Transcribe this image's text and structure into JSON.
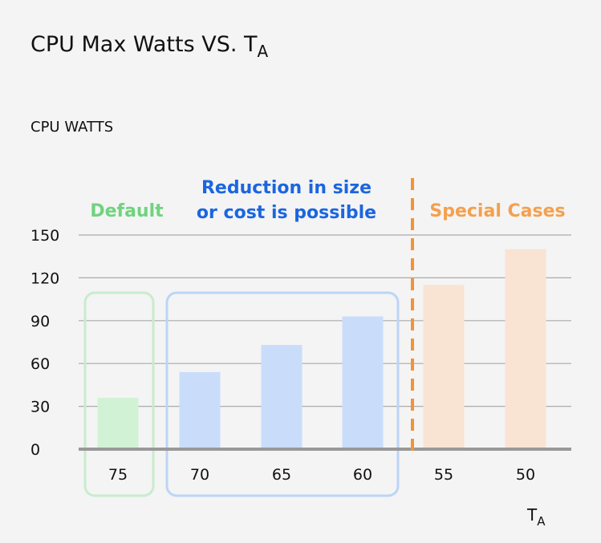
{
  "chart_data": {
    "type": "bar",
    "title": "CPU Max Watts VS. T",
    "title_subscript": "A",
    "ylabel": "CPU WATTS",
    "xlabel": "T",
    "xlabel_subscript": "A",
    "categories": [
      "75",
      "70",
      "65",
      "60",
      "55",
      "50"
    ],
    "values": [
      36,
      54,
      73,
      93,
      115,
      140
    ],
    "ylim": [
      0,
      150
    ],
    "yticks": [
      0,
      30,
      60,
      90,
      120,
      150
    ],
    "grid": true,
    "bar_colors": [
      "#d2f2d6",
      "#c9ddfb",
      "#c9ddfb",
      "#c9ddfb",
      "#f9e3d2",
      "#f9e3d2"
    ],
    "groups": [
      {
        "name": "Default",
        "lines": [
          "Default"
        ],
        "color": "#6fd37f",
        "box_color": "#c8ecce",
        "start": 0,
        "end": 0
      },
      {
        "name": "Reduction in size or cost is possible",
        "lines": [
          "Reduction in size",
          "or cost is possible"
        ],
        "color": "#1a66e0",
        "box_color": "#bcd5f7",
        "start": 1,
        "end": 3
      },
      {
        "name": "Special Cases",
        "lines": [
          "Special Cases"
        ],
        "color": "#f4a04e",
        "start": 4,
        "end": 5
      }
    ],
    "divider_color": "#f29338"
  }
}
